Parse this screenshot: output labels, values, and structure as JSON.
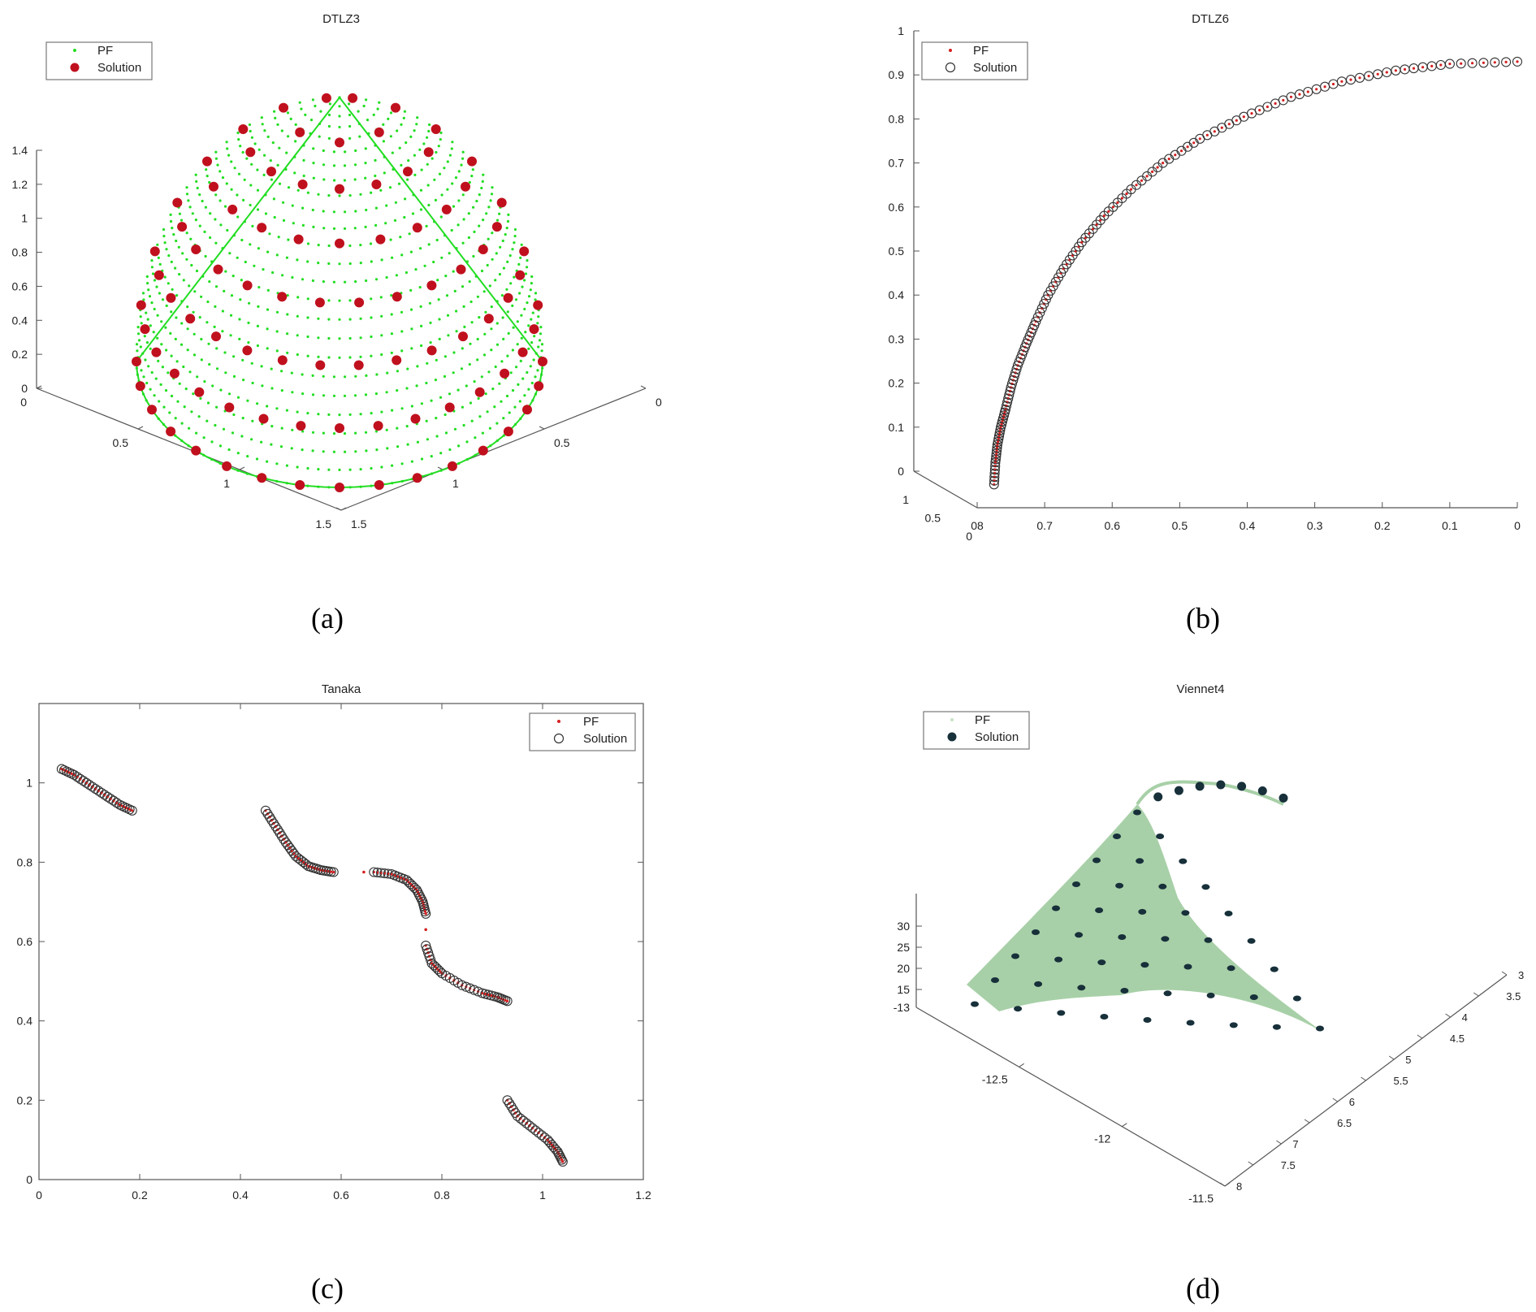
{
  "captions": [
    "(a)",
    "(b)",
    "(c)",
    "(d)"
  ],
  "chart_data": [
    {
      "panel": "a",
      "type": "scatter",
      "title": "DTLZ3",
      "legend_position": "top-left",
      "legend": [
        {
          "label": "PF",
          "marker": "green dot"
        },
        {
          "label": "Solution",
          "marker": "filled red circle"
        }
      ],
      "z_ticks": [
        "0",
        "0.2",
        "0.4",
        "0.6",
        "0.8",
        "1",
        "1.2",
        "1.4"
      ],
      "x_ticks": [
        "0",
        "0.5",
        "1",
        "1.5"
      ],
      "y_ticks": [
        "0",
        "0.5",
        "1",
        "1.5"
      ],
      "zlim": [
        0,
        1.4
      ],
      "xlim": [
        0,
        1.5
      ],
      "ylim": [
        0,
        1.5
      ],
      "grid": false,
      "front_shape": "spherical octant with radius 1",
      "colors": {
        "pf": "#22dd22",
        "solution": "#c0101e"
      }
    },
    {
      "panel": "b",
      "type": "line",
      "title": "DTLZ6",
      "legend_position": "top-left",
      "legend": [
        {
          "label": "PF",
          "marker": "red dot"
        },
        {
          "label": "Solution",
          "marker": "open circle"
        }
      ],
      "z_ticks": [
        "0",
        "0.1",
        "0.2",
        "0.3",
        "0.4",
        "0.5",
        "0.6",
        "0.7",
        "0.8",
        "0.9",
        "1"
      ],
      "x_ticks": [
        "0",
        "0.1",
        "0.2",
        "0.3",
        "0.4",
        "0.5",
        "0.6",
        "0.7",
        "08"
      ],
      "depth_ticks": [
        "1",
        "0.5",
        "0"
      ],
      "zlim": [
        0,
        1
      ],
      "xlim": [
        0.8,
        0
      ],
      "grid": false,
      "curve_points": [
        [
          0.775,
          -0.03
        ],
        [
          0.773,
          0.02
        ],
        [
          0.77,
          0.06
        ],
        [
          0.765,
          0.1
        ],
        [
          0.758,
          0.14
        ],
        [
          0.75,
          0.19
        ],
        [
          0.74,
          0.24
        ],
        [
          0.727,
          0.29
        ],
        [
          0.713,
          0.34
        ],
        [
          0.695,
          0.4
        ],
        [
          0.672,
          0.46
        ],
        [
          0.645,
          0.52
        ],
        [
          0.612,
          0.58
        ],
        [
          0.572,
          0.64
        ],
        [
          0.525,
          0.7
        ],
        [
          0.47,
          0.755
        ],
        [
          0.405,
          0.805
        ],
        [
          0.335,
          0.85
        ],
        [
          0.26,
          0.885
        ],
        [
          0.18,
          0.91
        ],
        [
          0.1,
          0.925
        ],
        [
          0.0,
          0.93
        ]
      ],
      "colors": {
        "pf": "#d42020",
        "solution": "#333333"
      }
    },
    {
      "panel": "c",
      "type": "scatter",
      "title": "Tanaka",
      "legend_position": "top-right",
      "legend": [
        {
          "label": "PF",
          "marker": "red dot"
        },
        {
          "label": "Solution",
          "marker": "open circle"
        }
      ],
      "x_ticks": [
        "0",
        "0.2",
        "0.4",
        "0.6",
        "0.8",
        "1",
        "1.2"
      ],
      "y_ticks": [
        "0",
        "0.2",
        "0.4",
        "0.6",
        "0.8",
        "1"
      ],
      "xlim": [
        0,
        1.2
      ],
      "ylim": [
        0,
        1.2
      ],
      "grid": false,
      "segments": [
        [
          [
            0.045,
            1.035
          ],
          [
            0.07,
            1.02
          ],
          [
            0.1,
            0.995
          ],
          [
            0.13,
            0.97
          ],
          [
            0.16,
            0.945
          ],
          [
            0.185,
            0.93
          ]
        ],
        [
          [
            0.45,
            0.93
          ],
          [
            0.47,
            0.89
          ],
          [
            0.49,
            0.85
          ],
          [
            0.51,
            0.815
          ],
          [
            0.535,
            0.79
          ],
          [
            0.56,
            0.78
          ],
          [
            0.585,
            0.775
          ]
        ],
        [
          [
            0.665,
            0.775
          ],
          [
            0.7,
            0.77
          ],
          [
            0.73,
            0.755
          ],
          [
            0.75,
            0.73
          ],
          [
            0.762,
            0.7
          ],
          [
            0.768,
            0.67
          ]
        ],
        [
          [
            0.768,
            0.59
          ],
          [
            0.78,
            0.545
          ],
          [
            0.8,
            0.52
          ],
          [
            0.84,
            0.49
          ],
          [
            0.88,
            0.47
          ],
          [
            0.91,
            0.46
          ],
          [
            0.93,
            0.45
          ]
        ],
        [
          [
            0.93,
            0.2
          ],
          [
            0.95,
            0.16
          ],
          [
            0.98,
            0.13
          ],
          [
            1.01,
            0.1
          ],
          [
            1.03,
            0.07
          ],
          [
            1.04,
            0.045
          ]
        ]
      ],
      "isolated_points": [
        [
          0.645,
          0.775
        ],
        [
          0.768,
          0.63
        ]
      ],
      "colors": {
        "pf": "#d42020",
        "solution": "#333333"
      }
    },
    {
      "panel": "d",
      "type": "scatter",
      "title": "Viennet4",
      "legend_position": "top-left",
      "legend": [
        {
          "label": "PF",
          "marker": "light green dot"
        },
        {
          "label": "Solution",
          "marker": "filled dark circle"
        }
      ],
      "z_ticks": [
        "15",
        "20",
        "25",
        "30"
      ],
      "x_ticks": [
        "-13",
        "-12.5",
        "-12",
        "-11.5"
      ],
      "y_ticks": [
        "3",
        "3.5",
        "4",
        "4.5",
        "5",
        "5.5",
        "6",
        "6.5",
        "7",
        "7.5",
        "8"
      ],
      "grid": false,
      "front_shape": "curved triangular surface with a tail curve at the top",
      "colors": {
        "surface": "#a8d0a8",
        "solution": "#17303a"
      }
    }
  ]
}
